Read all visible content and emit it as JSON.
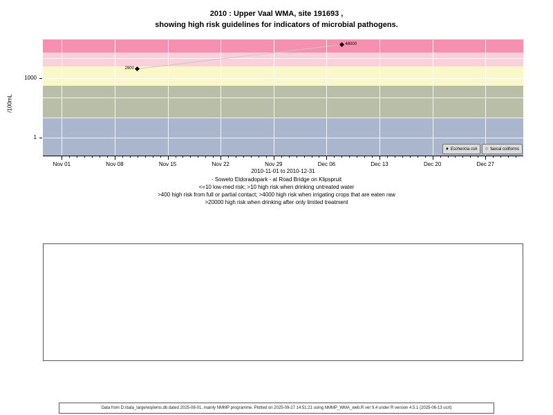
{
  "title_line1": "2010 : Upper Vaal WMA, site 191693 ,",
  "title_line2": "showing high risk guidelines for indicators of microbial pathogens.",
  "icons": {
    "filled_diamond": "♦",
    "open_circle": "○"
  },
  "chart_data": {
    "type": "scatter",
    "ylabel": "/100mL",
    "y_scale": "log10",
    "y_ticks": [
      1000,
      1
    ],
    "y_range": [
      0.11,
      89000
    ],
    "gridlines_y": [
      1,
      10,
      100,
      1000,
      10000
    ],
    "grid": true,
    "x_start": "2010-11-01",
    "x_end": "2010-12-31",
    "x_ticks": [
      "Nov 01",
      "Nov 08",
      "Nov 15",
      "Nov 22",
      "Nov 29",
      "Dec 06",
      "Dec 13",
      "Dec 20",
      "Dec 27"
    ],
    "x_range_label": "2010-11-01 to 2010-12-31",
    "line_color": "#c8c8c8",
    "series": [
      {
        "name": "Eschericia coli",
        "marker": "filled-diamond",
        "points": [
          {
            "date": "2010-11-11",
            "value": 2900,
            "label": "2900",
            "label_side": "left"
          },
          {
            "date": "2010-12-08",
            "value": 48000,
            "label": "48000",
            "label_side": "right"
          }
        ]
      },
      {
        "name": "faecal coliforms",
        "marker": "open-circle",
        "points": []
      }
    ],
    "risk_bands": [
      {
        "label": "low-med risk <=10",
        "from": null,
        "to": 10,
        "color": "#a9b6ce"
      },
      {
        "label": "high risk drinking untreated >10",
        "from": 10,
        "to": 400,
        "color": "#b8bfa6"
      },
      {
        "label": "high risk contact >400",
        "from": 400,
        "to": 4000,
        "color": "#faf8c8"
      },
      {
        "label": "high risk irrigation >4000",
        "from": 4000,
        "to": 20000,
        "color": "#fbd0dc"
      },
      {
        "label": "high risk limited treatment >20000",
        "from": 20000,
        "to": null,
        "color": "#f78fb0"
      }
    ],
    "legend_position": "bottom-right"
  },
  "captions": [
    "- Soweto Eldoradopark - at Road Bridge on Klipspruit",
    "<=10 low-med risk; >10 high risk when drinking untreated water",
    ">400 high risk from full or partial contact; >4000 high risk when irrigating crops that are eaten raw",
    ">20000 high risk when drinking after only limited treatment"
  ],
  "footer": "Data from D:/data_large/wq/wms.db dated 2025-08-01, mainly NMMP programme. Plotted on 2025-09-27 14:51:21 using NMMP_WMA_web.R ver 9.4 under R version 4.5.1 (2025-06-13 ucrt)"
}
